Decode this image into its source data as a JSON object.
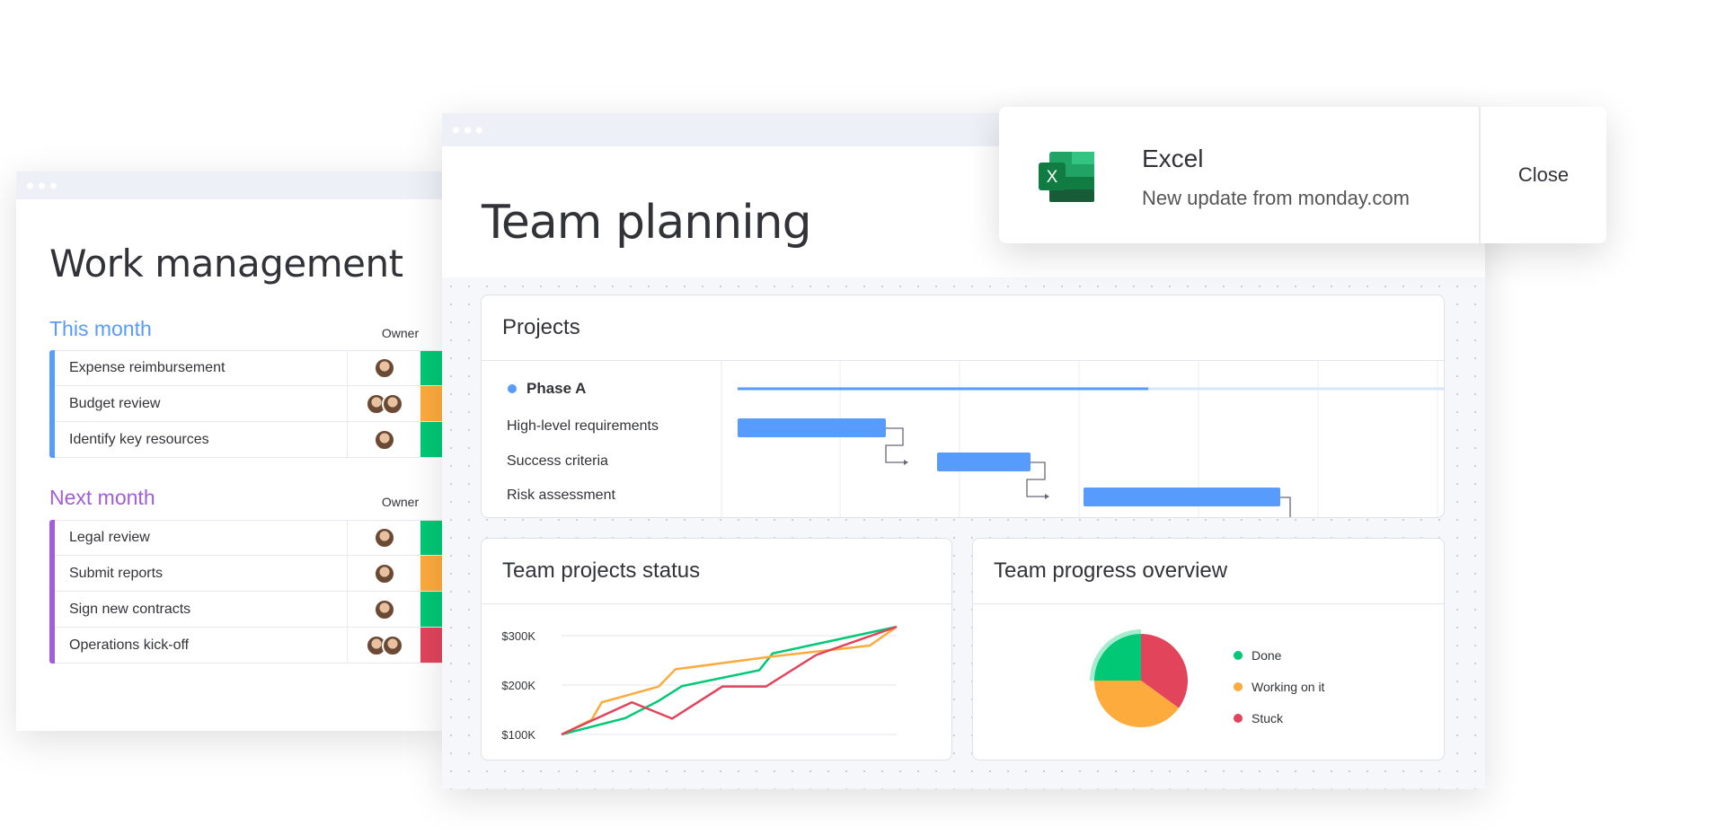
{
  "work_management": {
    "title": "Work management",
    "groups": [
      {
        "title": "This month",
        "owner_label": "Owner",
        "color": "#579bfc",
        "items": [
          {
            "name": "Expense reimbursement",
            "owners": 1,
            "status_color": "#00c875"
          },
          {
            "name": "Budget review",
            "owners": 2,
            "status_color": "#fdab3d"
          },
          {
            "name": "Identify key resources",
            "owners": 1,
            "status_color": "#00c875"
          }
        ]
      },
      {
        "title": "Next month",
        "owner_label": "Owner",
        "color": "#a25ddc",
        "items": [
          {
            "name": "Legal review",
            "owners": 1,
            "status_color": "#00c875"
          },
          {
            "name": "Submit reports",
            "owners": 1,
            "status_color": "#fdab3d"
          },
          {
            "name": "Sign new contracts",
            "owners": 1,
            "status_color": "#00c875"
          },
          {
            "name": "Operations kick-off",
            "owners": 2,
            "status_color": "#e2445c"
          }
        ]
      }
    ]
  },
  "team_planning": {
    "title": "Team planning",
    "projects": {
      "title": "Projects",
      "phase": "Phase A",
      "tasks": [
        "High-level requirements",
        "Success criteria",
        "Risk assessment"
      ]
    },
    "status_card": {
      "title": "Team projects status"
    },
    "progress_card": {
      "title": "Team progress overview"
    }
  },
  "notification": {
    "app": "Excel",
    "message": "New update from monday.com",
    "close_label": "Close",
    "icon": "excel-icon"
  },
  "chart_data": [
    {
      "type": "line",
      "title": "Team projects status",
      "y_tick_labels": [
        "$100K",
        "$200K",
        "$300K"
      ],
      "ylim": [
        100,
        300
      ],
      "grid": true,
      "series": [
        {
          "color": "#00c875",
          "x": [
            0,
            19,
            29,
            36,
            59,
            63,
            100
          ],
          "values": [
            100,
            133,
            168,
            198,
            230,
            264,
            318
          ]
        },
        {
          "color": "#fdab3d",
          "x": [
            0,
            9,
            12,
            29,
            34,
            63,
            92,
            100
          ],
          "values": [
            100,
            130,
            165,
            197,
            232,
            258,
            280,
            318
          ]
        },
        {
          "color": "#e2445c",
          "x": [
            0,
            21,
            33,
            48,
            61,
            76,
            100
          ],
          "values": [
            100,
            165,
            132,
            197,
            197,
            261,
            318
          ]
        }
      ]
    },
    {
      "type": "pie",
      "title": "Team progress overview",
      "legend": "right",
      "slices": [
        {
          "label": "Done",
          "value": 25,
          "color": "#00c875"
        },
        {
          "label": "Working on it",
          "value": 40,
          "color": "#fdab3d"
        },
        {
          "label": "Stuck",
          "value": 35,
          "color": "#e2445c"
        }
      ]
    }
  ]
}
